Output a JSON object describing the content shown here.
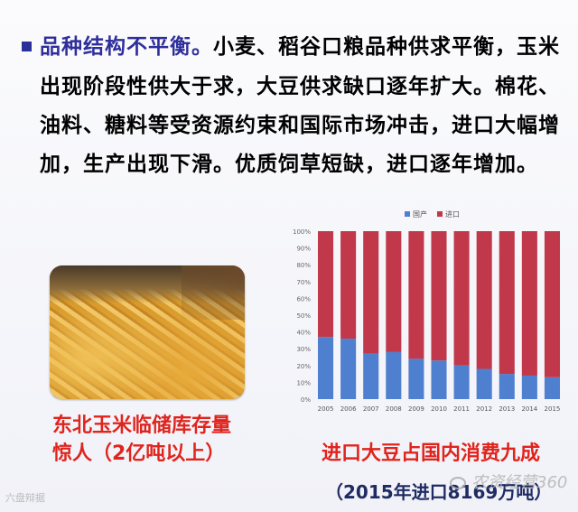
{
  "text": {
    "heading": "品种结构不平衡。",
    "body": "小麦、稻谷口粮品种供求平衡，玉米出现阶段性供大于求，大豆供求缺口逐年扩大。棉花、油料、糖料等受资源约束和国际市场冲击，进口大幅增加，生产出现下滑。优质饲草短缺，进口逐年增加。"
  },
  "photo": {
    "caption_line1": "东北玉米临储库存量",
    "caption_line2": "惊人（2亿吨以上）"
  },
  "chart_caption": {
    "line1": "进口大豆占国内消费九成",
    "line2": "（2015年进口8169万吨）"
  },
  "watermarks": {
    "left": "六盘辩据",
    "right": "农资经营360"
  },
  "colors": {
    "domestic": "#4f7fcf",
    "import": "#c0384a",
    "heading": "#2f2f9c",
    "caption_red": "#e0241d",
    "caption_dark": "#1f2b63"
  },
  "chart_data": {
    "type": "bar",
    "stacked": true,
    "categories": [
      "2005",
      "2006",
      "2007",
      "2008",
      "2009",
      "2010",
      "2011",
      "2012",
      "2013",
      "2014",
      "2015"
    ],
    "series": [
      {
        "name": "国产",
        "values": [
          37,
          36,
          27,
          28,
          24,
          23,
          20,
          18,
          15,
          14,
          13
        ]
      },
      {
        "name": "进口",
        "values": [
          63,
          64,
          73,
          72,
          76,
          77,
          80,
          82,
          85,
          86,
          87
        ]
      }
    ],
    "ylim": [
      0,
      100
    ],
    "yticks": [
      "0%",
      "10%",
      "20%",
      "30%",
      "40%",
      "50%",
      "60%",
      "70%",
      "80%",
      "90%",
      "100%"
    ],
    "legend_position": "top",
    "grid": false
  }
}
